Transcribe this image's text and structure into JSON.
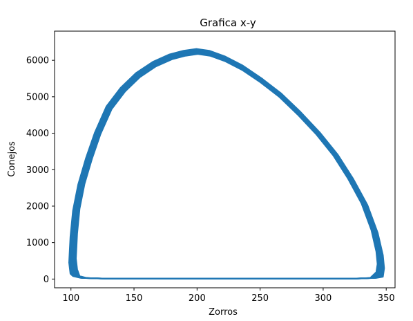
{
  "chart_data": {
    "type": "line",
    "title": "Grafica x-y",
    "xlabel": "Zorros",
    "ylabel": "Conejos",
    "xlim": [
      87,
      357
    ],
    "ylim": [
      -240,
      6800
    ],
    "xticks": [
      100,
      150,
      200,
      250,
      300,
      350
    ],
    "yticks": [
      0,
      1000,
      2000,
      3000,
      4000,
      5000,
      6000
    ],
    "grid": false,
    "legend": "none",
    "series_color": "#1f77b4",
    "series": [
      {
        "x": [
          101,
          102,
          104,
          108,
          114,
          121,
          130,
          141,
          153,
          166,
          179,
          190,
          200,
          210,
          222,
          236,
          251,
          266,
          281,
          296,
          310,
          322,
          333,
          341,
          345,
          346,
          345,
          340,
          325,
          300,
          270,
          240,
          210,
          180,
          150,
          125,
          110,
          104,
          102,
          101
        ],
        "y": [
          500,
          1200,
          1900,
          2600,
          3300,
          4000,
          4700,
          5200,
          5600,
          5900,
          6100,
          6200,
          6250,
          6200,
          6050,
          5800,
          5450,
          5050,
          4550,
          4000,
          3400,
          2750,
          2050,
          1300,
          700,
          350,
          120,
          30,
          10,
          10,
          10,
          10,
          10,
          10,
          10,
          15,
          30,
          80,
          200,
          500
        ]
      }
    ]
  }
}
